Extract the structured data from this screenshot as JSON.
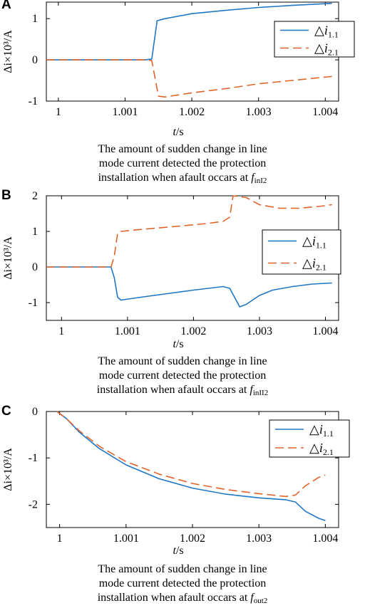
{
  "colors": {
    "series1": "#1f77c4",
    "series2": "#e0642a"
  },
  "panels": [
    {
      "letter": "A",
      "caption": [
        "The amount of sudden change in line",
        "mode current detected the protection",
        "installation when afault occars at "
      ],
      "caption_f": "f",
      "caption_sub": "inI2"
    },
    {
      "letter": "B",
      "caption": [
        "The amount of sudden change in line",
        "mode current detected the protection",
        "installation when afault occars at "
      ],
      "caption_f": "f",
      "caption_sub": "inII2"
    },
    {
      "letter": "C",
      "caption": [
        "The amount of sudden change in line",
        "mode current detected the protection",
        "installation when afault occars at "
      ],
      "caption_f": "f",
      "caption_sub": "out2"
    }
  ],
  "chart_data": [
    {
      "type": "line",
      "xlabel": "t/s",
      "ylabel": "Δi×10³/A",
      "xlim": [
        0.99982,
        1.0042
      ],
      "ylim": [
        -1,
        1.4
      ],
      "xticks": [
        1,
        1.001,
        1.002,
        1.003,
        1.004
      ],
      "xtick_labels": [
        "1",
        "1.001",
        "1.002",
        "1.003",
        "1.004"
      ],
      "yticks": [
        -1,
        0,
        1
      ],
      "ytick_labels": [
        "-1",
        "0",
        "1"
      ],
      "legend_position": "top-right",
      "series": [
        {
          "name": "△i1.1",
          "name_main": "△i",
          "name_sub": "1.1",
          "style": "solid",
          "x": [
            0.99982,
            1.0013,
            1.0014,
            1.00148,
            1.0016,
            1.002,
            1.0025,
            1.003,
            1.0035,
            1.0041
          ],
          "y": [
            0,
            0,
            0.02,
            0.95,
            1.0,
            1.12,
            1.2,
            1.27,
            1.32,
            1.37
          ]
        },
        {
          "name": "△i2.1",
          "name_main": "△i",
          "name_sub": "2.1",
          "style": "dashed",
          "x": [
            0.99982,
            1.0013,
            1.0014,
            1.0015,
            1.0016,
            1.002,
            1.0025,
            1.003,
            1.0035,
            1.0041
          ],
          "y": [
            0,
            0,
            -0.02,
            -0.88,
            -0.9,
            -0.8,
            -0.7,
            -0.58,
            -0.5,
            -0.4
          ]
        }
      ]
    },
    {
      "type": "line",
      "xlabel": "t/s",
      "ylabel": "Δi×10³/A",
      "xlim": [
        0.99977,
        1.0042
      ],
      "ylim": [
        -1.5,
        2
      ],
      "xticks": [
        1,
        1.001,
        1.002,
        1.003,
        1.004
      ],
      "xtick_labels": [
        "1",
        "1.001",
        "1.002",
        "1.003",
        "1.004"
      ],
      "yticks": [
        -1,
        0,
        1,
        2
      ],
      "ytick_labels": [
        "-1",
        "0",
        "1",
        "2"
      ],
      "legend_position": "right",
      "series": [
        {
          "name": "△i1.1",
          "name_main": "△i",
          "name_sub": "1.1",
          "style": "solid",
          "x": [
            0.99977,
            1.00075,
            1.0008,
            1.00085,
            1.0009,
            1.0012,
            1.0016,
            1.002,
            1.00245,
            1.00255,
            1.0027,
            1.0028,
            1.003,
            1.0032,
            1.0035,
            1.0038,
            1.0041
          ],
          "y": [
            0,
            0,
            -0.3,
            -0.85,
            -0.93,
            -0.85,
            -0.75,
            -0.65,
            -0.55,
            -0.6,
            -1.12,
            -1.05,
            -0.8,
            -0.65,
            -0.55,
            -0.48,
            -0.45
          ]
        },
        {
          "name": "△i2.1",
          "name_main": "△i",
          "name_sub": "2.1",
          "style": "dashed",
          "x": [
            0.99977,
            1.00075,
            1.0008,
            1.00085,
            1.0009,
            1.0013,
            1.0018,
            1.0022,
            1.00245,
            1.00255,
            1.0026,
            1.0028,
            1.003,
            1.0033,
            1.0036,
            1.0039,
            1.0041
          ],
          "y": [
            0,
            0,
            0.3,
            0.95,
            1.0,
            1.07,
            1.15,
            1.22,
            1.28,
            1.4,
            2.0,
            1.95,
            1.75,
            1.65,
            1.65,
            1.7,
            1.75
          ]
        }
      ]
    },
    {
      "type": "line",
      "xlabel": "t/s",
      "ylabel": "Δi×10³/A",
      "xlim": [
        0.9998,
        1.0042
      ],
      "ylim": [
        -2.5,
        0
      ],
      "xticks": [
        1,
        1.001,
        1.002,
        1.003,
        1.004
      ],
      "xtick_labels": [
        "1",
        "1.001",
        "1.002",
        "1.003",
        "1.004"
      ],
      "yticks": [
        -2,
        -1,
        0
      ],
      "ytick_labels": [
        "-2",
        "-1",
        "0"
      ],
      "legend_position": "top-right",
      "series": [
        {
          "name": "△i1.1",
          "name_main": "△i",
          "name_sub": "1.1",
          "style": "solid",
          "x": [
            0.99996,
            1.0001,
            1.0003,
            1.0006,
            1.001,
            1.0015,
            1.002,
            1.0025,
            1.003,
            1.0034,
            1.00355,
            1.0037,
            1.0039,
            1.004
          ],
          "y": [
            0,
            -0.15,
            -0.45,
            -0.8,
            -1.15,
            -1.45,
            -1.65,
            -1.78,
            -1.86,
            -1.9,
            -1.95,
            -2.15,
            -2.3,
            -2.35
          ]
        },
        {
          "name": "△i2.1",
          "name_main": "△i",
          "name_sub": "2.1",
          "style": "dashed",
          "x": [
            0.99996,
            1.0001,
            1.0003,
            1.0006,
            1.001,
            1.0015,
            1.002,
            1.0025,
            1.003,
            1.0034,
            1.00355,
            1.0037,
            1.0039,
            1.004
          ],
          "y": [
            0,
            -0.15,
            -0.42,
            -0.75,
            -1.08,
            -1.35,
            -1.55,
            -1.68,
            -1.77,
            -1.83,
            -1.8,
            -1.6,
            -1.42,
            -1.37
          ]
        }
      ]
    }
  ]
}
